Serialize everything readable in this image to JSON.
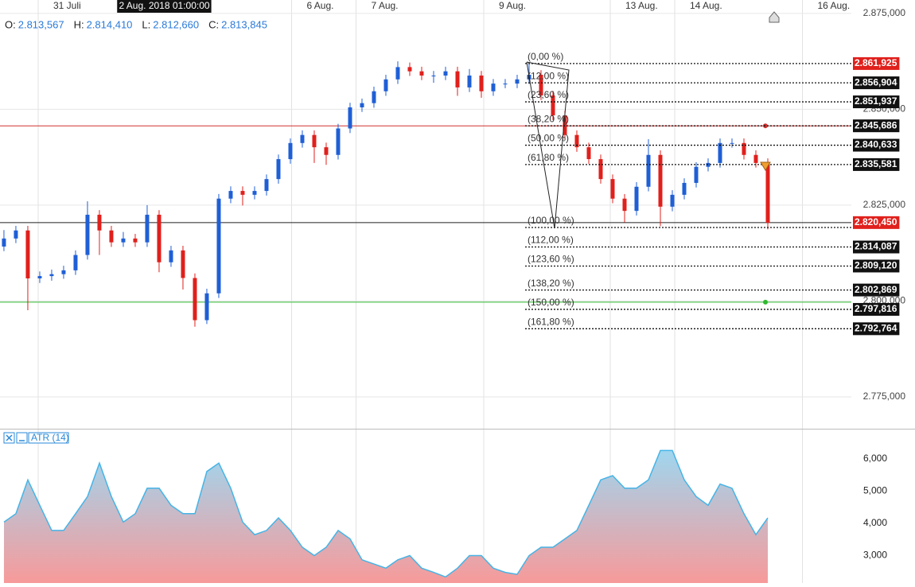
{
  "chart_data": {
    "type": "candlestick",
    "ohlc_header": [
      {
        "key": "O:",
        "value": "2.813,567"
      },
      {
        "key": "H:",
        "value": "2.814,410"
      },
      {
        "key": "L:",
        "value": "2.812,660"
      },
      {
        "key": "C:",
        "value": "2.813,845"
      }
    ],
    "xlim": [
      -0.33,
      71.0
    ],
    "xticks": [
      {
        "value": 2.87,
        "label": "31 Juli"
      },
      {
        "value": 24.1,
        "label": "6 Aug."
      },
      {
        "value": 29.5,
        "label": "7 Aug."
      },
      {
        "value": 40.2,
        "label": "9 Aug."
      },
      {
        "value": 50.8,
        "label": "13 Aug."
      },
      {
        "value": 56.2,
        "label": "14 Aug."
      },
      {
        "value": 66.9,
        "label": "16 Aug."
      }
    ],
    "crosshair": {
      "value": 9.5,
      "label": "2 Aug. 2018 01:00:00"
    },
    "ylim": [
      2766.9,
      2878.5
    ],
    "yticks": [
      {
        "value": 2875,
        "label": "2.875,000"
      },
      {
        "value": 2850,
        "label": "2.850,000"
      },
      {
        "value": 2825,
        "label": "2.825,000"
      },
      {
        "value": 2800,
        "label": "2.800,000"
      },
      {
        "value": 2775,
        "label": "2.775,000"
      }
    ],
    "grid": true,
    "up_color": "#1f5fd6",
    "down_color": "#e0201c",
    "candles": {
      "open": [
        2814.2,
        2816.3,
        2818.4,
        2805.9,
        2806.5,
        2807.0,
        2808.0,
        2812.0,
        2822.5,
        2818.4,
        2815.3,
        2816.3,
        2815.3,
        2822.5,
        2810.1,
        2813.2,
        2806.0,
        2795.0,
        2802.0,
        2826.7,
        2828.7,
        2827.7,
        2828.7,
        2831.8,
        2837.0,
        2841.2,
        2843.3,
        2840.1,
        2838.1,
        2845.0,
        2850.5,
        2851.6,
        2854.7,
        2857.8,
        2861.0,
        2859.9,
        2858.8,
        2858.8,
        2859.9,
        2855.7,
        2858.8,
        2854.7,
        2856.7,
        2856.7,
        2857.8,
        2859.0,
        2853.6,
        2848.4,
        2843.3,
        2840.1,
        2837.0,
        2831.8,
        2826.7,
        2823.5,
        2829.8,
        2838.1,
        2824.6,
        2827.7,
        2830.8,
        2835.0,
        2836.0,
        2841.2,
        2841.2,
        2838.1,
        2836.0
      ],
      "high": [
        2818.5,
        2819.6,
        2819.6,
        2807.7,
        2808.2,
        2809.2,
        2813.2,
        2826.0,
        2823.7,
        2819.6,
        2818.0,
        2817.5,
        2825.0,
        2823.7,
        2814.4,
        2814.4,
        2807.2,
        2803.2,
        2827.9,
        2829.9,
        2829.9,
        2829.9,
        2833.0,
        2838.2,
        2842.4,
        2844.5,
        2844.5,
        2841.3,
        2846.2,
        2851.7,
        2852.8,
        2855.9,
        2859.0,
        2862.5,
        2862.2,
        2861.1,
        2860.0,
        2861.1,
        2861.1,
        2860.5,
        2860.0,
        2857.9,
        2857.9,
        2859.0,
        2861.9,
        2860.2,
        2854.8,
        2849.6,
        2844.5,
        2841.3,
        2838.2,
        2833.0,
        2827.9,
        2831.0,
        2842.2,
        2839.3,
        2828.9,
        2832.0,
        2836.2,
        2837.2,
        2842.4,
        2842.4,
        2842.4,
        2839.3,
        2837.2
      ],
      "low": [
        2813.0,
        2815.1,
        2797.6,
        2804.7,
        2805.3,
        2805.8,
        2806.8,
        2810.8,
        2812.0,
        2814.1,
        2814.1,
        2814.1,
        2814.1,
        2807.5,
        2808.9,
        2803.0,
        2793.3,
        2794.0,
        2800.8,
        2825.5,
        2824.9,
        2826.5,
        2827.5,
        2830.6,
        2835.8,
        2840.0,
        2836.0,
        2835.5,
        2836.9,
        2843.8,
        2849.3,
        2850.4,
        2853.5,
        2856.6,
        2858.7,
        2857.6,
        2856.9,
        2857.6,
        2853.5,
        2854.5,
        2853.0,
        2853.5,
        2855.5,
        2855.5,
        2856.6,
        2852.4,
        2847.2,
        2842.1,
        2838.9,
        2835.8,
        2830.6,
        2825.5,
        2820.5,
        2822.3,
        2828.6,
        2819.5,
        2823.4,
        2826.5,
        2829.6,
        2833.8,
        2834.8,
        2840.0,
        2836.9,
        2834.8,
        2818.7
      ],
      "close": [
        2816.3,
        2818.4,
        2805.9,
        2806.5,
        2807.0,
        2808.0,
        2812.0,
        2822.5,
        2818.4,
        2815.3,
        2816.3,
        2815.3,
        2822.5,
        2810.1,
        2813.2,
        2806.0,
        2795.0,
        2802.0,
        2826.7,
        2828.7,
        2827.7,
        2828.7,
        2831.8,
        2837.0,
        2841.2,
        2843.3,
        2840.1,
        2838.1,
        2845.0,
        2850.5,
        2851.6,
        2854.7,
        2857.8,
        2861.0,
        2859.9,
        2858.8,
        2858.8,
        2859.9,
        2855.7,
        2858.8,
        2854.7,
        2856.7,
        2856.7,
        2857.8,
        2859.0,
        2853.6,
        2848.4,
        2843.3,
        2840.1,
        2837.0,
        2831.8,
        2826.7,
        2823.5,
        2829.8,
        2838.1,
        2824.6,
        2827.7,
        2830.8,
        2835.0,
        2836.0,
        2841.2,
        2841.2,
        2838.1,
        2836.0,
        2820.4
      ]
    },
    "hlines": [
      {
        "value": 2845.686,
        "color": "#d0312d"
      },
      {
        "value": 2799.7,
        "color": "#2db92d"
      }
    ],
    "last_price": {
      "value": 2820.45,
      "label": "2.820,450",
      "color": "#e0201c"
    },
    "fib_levels": [
      {
        "label": "(0,00 %)",
        "value": 2861.925,
        "value_label": "2.861,925",
        "color": "#e0201c"
      },
      {
        "label": "(12,00 %)",
        "value": 2856.904,
        "value_label": "2.856,904"
      },
      {
        "label": "(23,60 %)",
        "value": 2851.937,
        "value_label": "2.851,937"
      },
      {
        "label": "(38,20 %)",
        "value": 2845.686,
        "value_label": "2.845,686"
      },
      {
        "label": "(50,00 %)",
        "value": 2840.633,
        "value_label": "2.840,633"
      },
      {
        "label": "(61,80 %)",
        "value": 2835.581,
        "value_label": "2.835,581"
      },
      {
        "label": "(100,00 %)",
        "value": 2819.18
      },
      {
        "label": "(112,00 %)",
        "value": 2814.087,
        "value_label": "2.814,087"
      },
      {
        "label": "(123,60 %)",
        "value": 2809.12,
        "value_label": "2.809,120"
      },
      {
        "label": "(138,20 %)",
        "value": 2802.869,
        "value_label": "2.802,869"
      },
      {
        "label": "(150,00 %)",
        "value": 2797.816,
        "value_label": "2.797,816"
      },
      {
        "label": "(161,80 %)",
        "value": 2792.764,
        "value_label": "2.792,764"
      }
    ],
    "atr": {
      "type": "area",
      "name": "ATR (14)",
      "color": "#45b4e6",
      "ylim": [
        2.15,
        6.91
      ],
      "yticks": [
        {
          "value": 6,
          "label": "6,000"
        },
        {
          "value": 5,
          "label": "5,000"
        },
        {
          "value": 4,
          "label": "4,000"
        },
        {
          "value": 3,
          "label": "3,000"
        }
      ],
      "values": [
        4.04,
        4.3,
        5.35,
        4.56,
        3.78,
        3.78,
        4.3,
        4.83,
        5.87,
        4.83,
        4.04,
        4.3,
        5.09,
        5.09,
        4.56,
        4.3,
        4.3,
        5.61,
        5.87,
        5.09,
        4.04,
        3.65,
        3.78,
        4.17,
        3.78,
        3.26,
        3.0,
        3.26,
        3.78,
        3.52,
        2.87,
        2.74,
        2.61,
        2.87,
        3.0,
        2.61,
        2.48,
        2.34,
        2.61,
        3.0,
        3.0,
        2.61,
        2.48,
        2.42,
        3.0,
        3.26,
        3.26,
        3.52,
        3.78,
        4.56,
        5.35,
        5.48,
        5.09,
        5.09,
        5.35,
        6.26,
        6.26,
        5.35,
        4.83,
        4.56,
        5.22,
        5.09,
        4.3,
        3.65,
        4.17
      ]
    }
  }
}
